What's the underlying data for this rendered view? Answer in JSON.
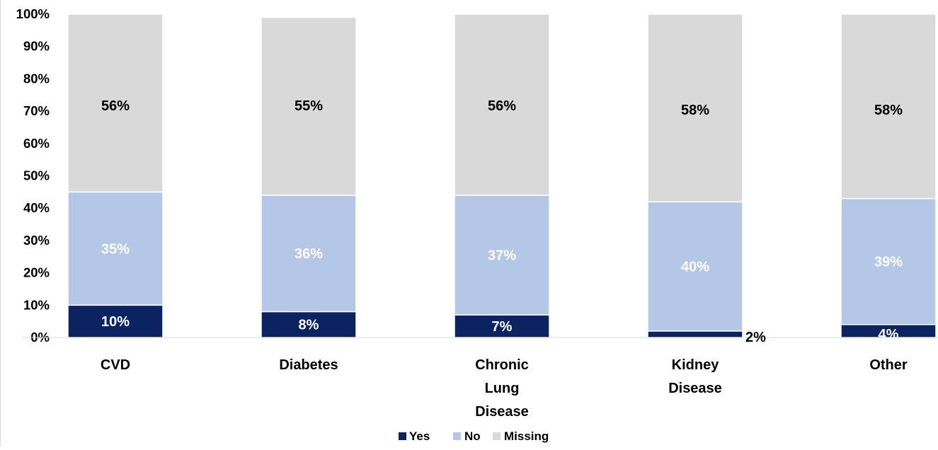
{
  "chart_data": {
    "type": "bar",
    "stacked": true,
    "title": "",
    "xlabel": "",
    "ylabel": "",
    "ylim": [
      0,
      100
    ],
    "y_ticks": [
      "0%",
      "10%",
      "20%",
      "30%",
      "40%",
      "50%",
      "60%",
      "70%",
      "80%",
      "90%",
      "100%"
    ],
    "categories": [
      "CVD",
      "Diabetes",
      "Chronic Lung Disease",
      "Kidney Disease",
      "Other"
    ],
    "category_lines": [
      [
        "CVD"
      ],
      [
        "Diabetes"
      ],
      [
        "Chronic",
        "Lung",
        "Disease"
      ],
      [
        "Kidney",
        "Disease"
      ],
      [
        "Other"
      ]
    ],
    "series": [
      {
        "name": "Yes",
        "color": "#0b2361",
        "label_color": "#ffffff",
        "values": [
          10,
          8,
          7,
          2,
          4
        ],
        "labels": [
          "10%",
          "8%",
          "7%",
          "2%",
          "4%"
        ]
      },
      {
        "name": "No",
        "color": "#b4c7e7",
        "label_color": "#ffffff",
        "values": [
          35,
          36,
          37,
          40,
          39
        ],
        "labels": [
          "35%",
          "36%",
          "37%",
          "40%",
          "39%"
        ]
      },
      {
        "name": "Missing",
        "color": "#d9d9d9",
        "label_color": "#000000",
        "values": [
          56,
          55,
          56,
          58,
          58
        ],
        "labels": [
          "56%",
          "55%",
          "56%",
          "58%",
          "58%"
        ]
      }
    ],
    "grid": false,
    "legend": "bottom"
  }
}
